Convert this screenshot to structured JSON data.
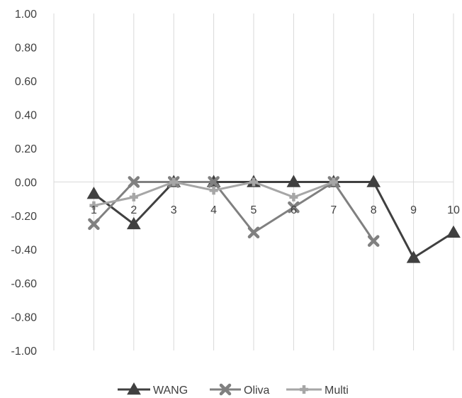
{
  "chart_data": {
    "type": "line",
    "title": "",
    "xlabel": "",
    "ylabel": "",
    "categories": [
      "1",
      "2",
      "3",
      "4",
      "5",
      "6",
      "7",
      "8",
      "9",
      "10"
    ],
    "ylim": [
      -1.0,
      1.0
    ],
    "ytick_labels": [
      "1.00",
      "0.80",
      "0.60",
      "0.40",
      "0.20",
      "0.00",
      "-0.20",
      "-0.40",
      "-0.60",
      "-0.80",
      "-1.00"
    ],
    "grid": "vertical",
    "legend_position": "bottom",
    "series": [
      {
        "name": "WANG",
        "marker": "triangle",
        "color": "#404040",
        "values": [
          -0.07,
          -0.25,
          0.0,
          0.0,
          0.0,
          0.0,
          0.0,
          0.0,
          -0.45,
          -0.3
        ]
      },
      {
        "name": "Oliva",
        "marker": "x",
        "color": "#808080",
        "values": [
          -0.25,
          0.0,
          0.0,
          0.0,
          -0.3,
          -0.15,
          0.0,
          -0.35,
          null,
          null
        ]
      },
      {
        "name": "Multi",
        "marker": "plus",
        "color": "#a6a6a6",
        "values": [
          -0.14,
          -0.09,
          0.0,
          -0.05,
          0.0,
          -0.09,
          0.0,
          null,
          null,
          null
        ]
      }
    ]
  }
}
